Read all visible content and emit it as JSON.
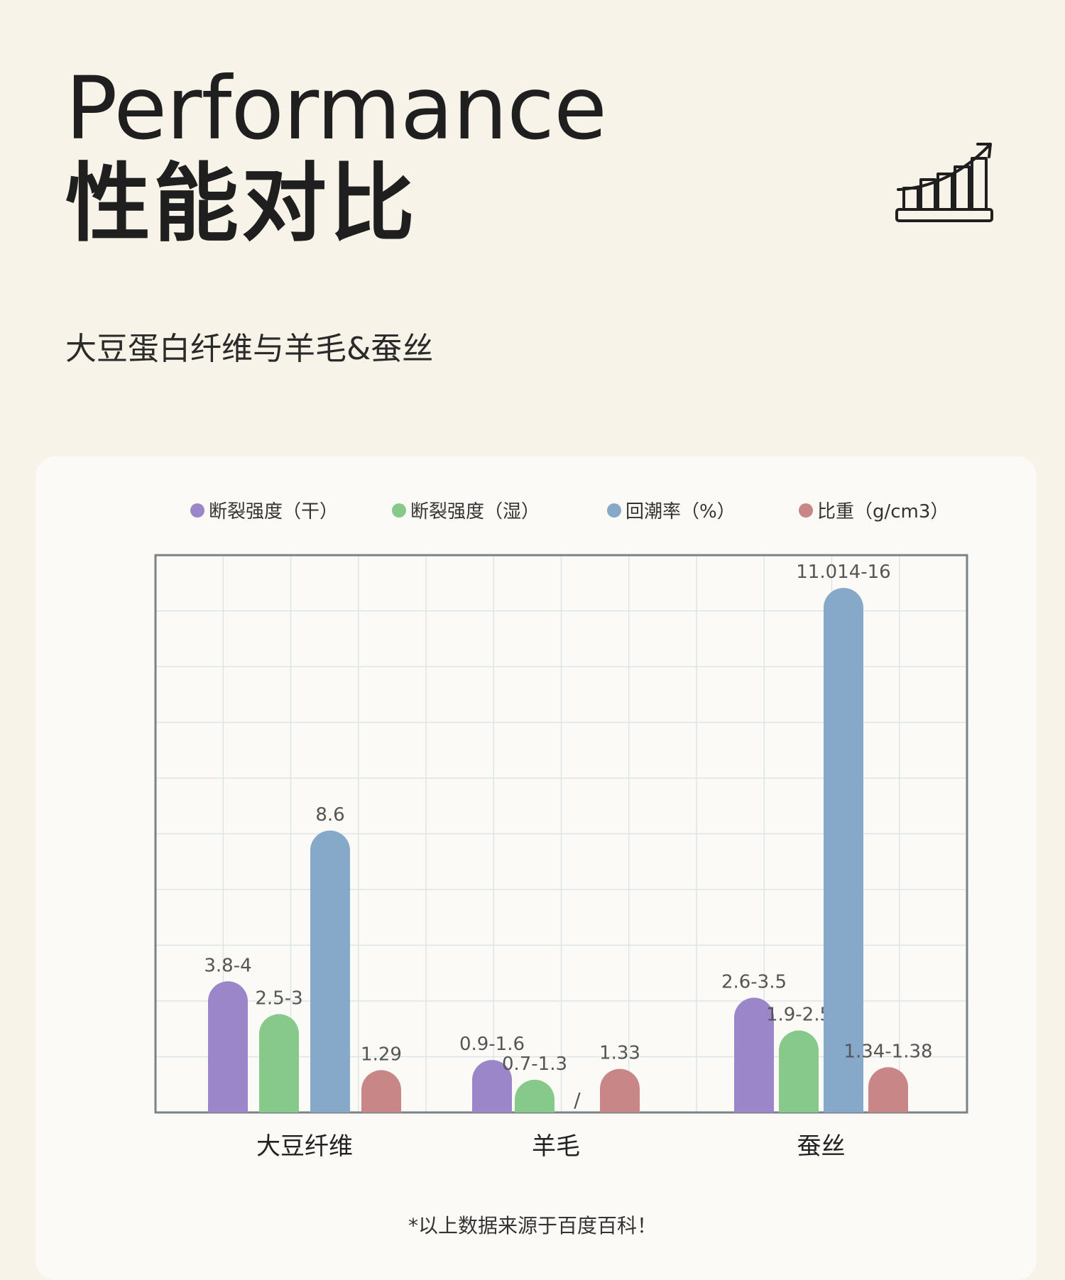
{
  "header": {
    "title_en": "Performance",
    "title_cn": "性能对比",
    "subtitle": "大豆蛋白纤维与羊毛&蚕丝"
  },
  "icons": {
    "header_icon": "growth-chart-icon"
  },
  "footnote": "*以上数据来源于百度百科！",
  "colors": {
    "background": "#f8f3e8",
    "card": "#fbfaf6",
    "grid": "#dde6e6",
    "frame": "#7a8288",
    "label": "#555555"
  },
  "chart_data": {
    "type": "bar",
    "title": "",
    "xlabel": "",
    "ylabel": "",
    "categories": [
      "大豆纤维",
      "羊毛",
      "蚕丝"
    ],
    "ylim": [
      0,
      17
    ],
    "grid": true,
    "legend_position": "top",
    "series": [
      {
        "name": "断裂强度（干）",
        "color": "#9b86c9",
        "values": [
          4,
          1.6,
          3.5
        ],
        "labels": [
          "3.8-4",
          "0.9-1.6",
          "2.6-3.5"
        ]
      },
      {
        "name": "断裂强度（湿）",
        "color": "#86c98a",
        "values": [
          3,
          1.0,
          2.5
        ],
        "labels": [
          "2.5-3",
          "0.7-1.3",
          "1.9-2.5"
        ]
      },
      {
        "name": "回潮率（%）",
        "color": "#86a8c9",
        "values": [
          8.6,
          null,
          16
        ],
        "labels": [
          "8.6",
          "/",
          "11.014-16"
        ]
      },
      {
        "name": "比重（g/cm3）",
        "color": "#c98686",
        "values": [
          1.29,
          1.33,
          1.38
        ],
        "labels": [
          "1.29",
          "1.33",
          "1.34-1.38"
        ]
      }
    ]
  }
}
